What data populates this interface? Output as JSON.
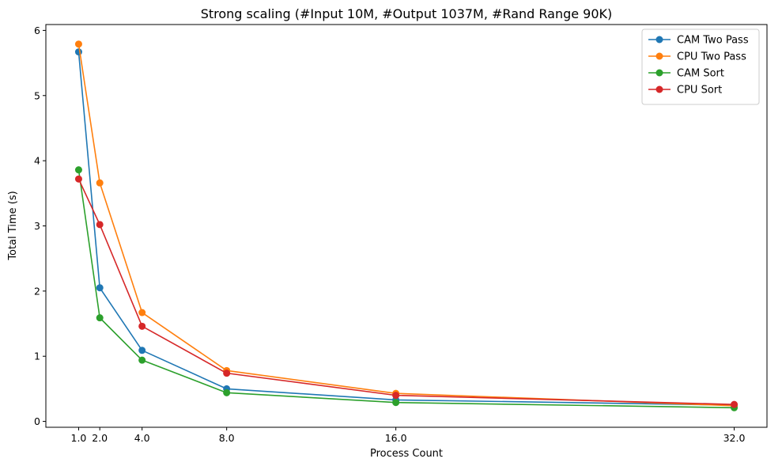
{
  "chart_data": {
    "type": "line",
    "title": "Strong scaling (#Input 10M, #Output 1037M, #Rand Range 90K)",
    "xlabel": "Process Count",
    "ylabel": "Total Time (s)",
    "x": [
      1.0,
      2.0,
      4.0,
      8.0,
      16.0,
      32.0
    ],
    "x_tick_labels": [
      "1.0",
      "2.0",
      "4.0",
      "8.0",
      "16.0",
      "32.0"
    ],
    "y_ticks": [
      0,
      1,
      2,
      3,
      4,
      5,
      6
    ],
    "y_tick_labels": [
      "0",
      "1",
      "2",
      "3",
      "4",
      "5",
      "6"
    ],
    "xlim": [
      -0.55,
      33.55
    ],
    "ylim": [
      -0.09,
      6.09
    ],
    "grid": false,
    "legend_position": "upper-right",
    "series": [
      {
        "name": "CAM Two Pass",
        "color": "#1f77b4",
        "values": [
          5.67,
          2.05,
          1.09,
          0.5,
          0.33,
          0.25
        ]
      },
      {
        "name": "CPU Two Pass",
        "color": "#ff7f0e",
        "values": [
          5.79,
          3.66,
          1.67,
          0.78,
          0.43,
          0.24
        ]
      },
      {
        "name": "CAM Sort",
        "color": "#2ca02c",
        "values": [
          3.86,
          1.59,
          0.94,
          0.44,
          0.29,
          0.21
        ]
      },
      {
        "name": "CPU Sort",
        "color": "#d62728",
        "values": [
          3.72,
          3.02,
          1.46,
          0.74,
          0.4,
          0.26
        ]
      }
    ]
  }
}
